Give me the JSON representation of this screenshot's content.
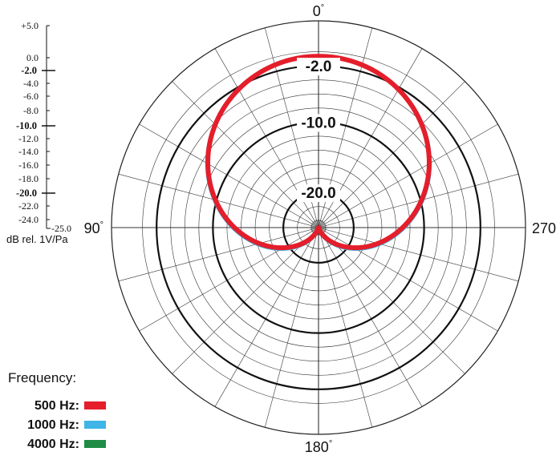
{
  "chart_data": {
    "type": "polar",
    "title": "",
    "angle_labels": [
      {
        "deg": 0,
        "text": "0",
        "suffix": "°"
      },
      {
        "deg": 90,
        "text": "90",
        "suffix": "°"
      },
      {
        "deg": 180,
        "text": "180",
        "suffix": "°"
      },
      {
        "deg": 270,
        "text": "270",
        "suffix": "°"
      }
    ],
    "angle_direction": "0 at top, 90 at left, 180 at bottom, 270 at right",
    "radial_range_db": [
      -25,
      0
    ],
    "major_rings_db": [
      -2.0,
      -10.0,
      -20.0
    ],
    "ring_labels": [
      "-2.0",
      "-10.0",
      "-20.0"
    ],
    "scale_ticks": [
      {
        "text": "+5.0",
        "bold": false
      },
      {
        "text": "0.0",
        "bold": false
      },
      {
        "text": "-2.0",
        "bold": true
      },
      {
        "text": "-4.0",
        "bold": false
      },
      {
        "text": "-6.0",
        "bold": false
      },
      {
        "text": "-8.0",
        "bold": false
      },
      {
        "text": "-10.0",
        "bold": true
      },
      {
        "text": "-12.0",
        "bold": false
      },
      {
        "text": "-14.0",
        "bold": false
      },
      {
        "text": "-16.0",
        "bold": false
      },
      {
        "text": "-18.0",
        "bold": false
      },
      {
        "text": "-20.0",
        "bold": true
      },
      {
        "text": "-22.0",
        "bold": false
      },
      {
        "text": "-24.0",
        "bold": false
      },
      {
        "text": "-25.0",
        "bold": false
      }
    ],
    "unit_label": "dB rel. 1V/Pa",
    "legend_title": "Frequency:",
    "series": [
      {
        "name": "4000 Hz:",
        "color": "#1e8c45",
        "pattern": "cardioid",
        "ratio_a": 0.503,
        "ratio_b": 0.497,
        "stroke": 3
      },
      {
        "name": "1000 Hz:",
        "color": "#3fb4e6",
        "pattern": "cardioid",
        "ratio_a": 0.5,
        "ratio_b": 0.5,
        "stroke": 4.5
      },
      {
        "name": "500 Hz:",
        "color": "#e41e2b",
        "pattern": "cardioid",
        "ratio_a": 0.49,
        "ratio_b": 0.51,
        "stroke": 6
      }
    ],
    "legend_order": [
      "500 Hz:",
      "1000 Hz:",
      "4000 Hz:"
    ]
  }
}
